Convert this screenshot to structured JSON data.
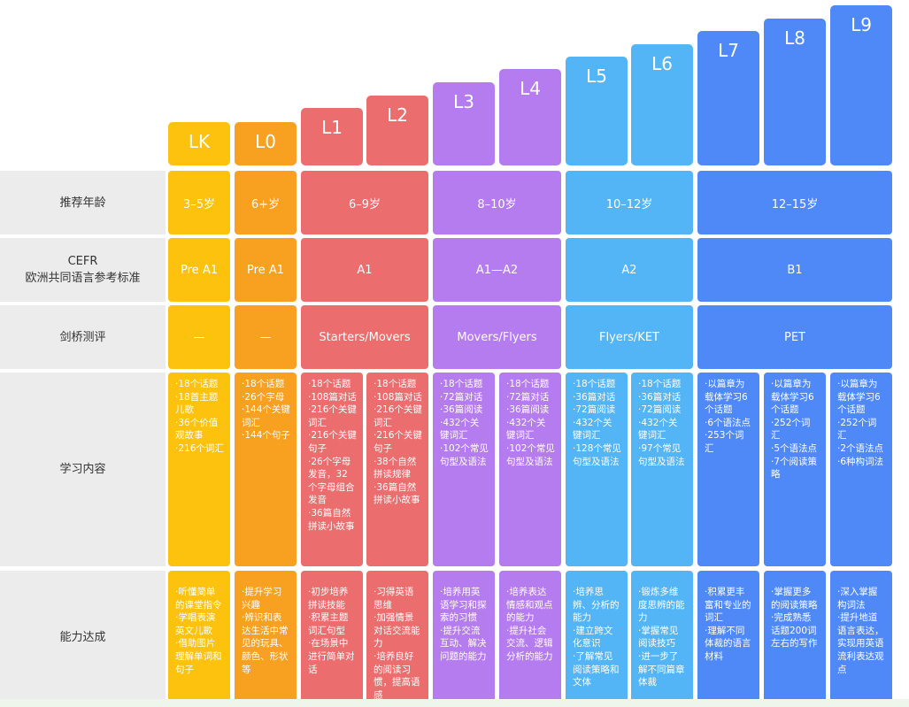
{
  "levels": [
    "LK",
    "L0",
    "L1",
    "L2",
    "L3",
    "L4",
    "L5",
    "L6",
    "L7",
    "L8",
    "L9"
  ],
  "row_labels": {
    "age": "推荐年龄",
    "cefr": "CEFR\n欧洲共同语言参考标准",
    "cambridge": "剑桥测评",
    "content": "学习内容",
    "ability": "能力达成"
  },
  "age": [
    "3–5岁",
    "6+岁",
    "6–9岁",
    "8–10岁",
    "10–12岁",
    "12–15岁"
  ],
  "cefr": [
    "Pre A1",
    "Pre A1",
    "A1",
    "A1—A2",
    "A2",
    "B1"
  ],
  "cambridge": [
    "—",
    "—",
    "Starters/Movers",
    "Movers/Flyers",
    "Flyers/KET",
    "PET"
  ],
  "content": [
    "·18个话题\n·18首主题\n儿歌\n·36个价值\n观故事\n·216个词汇",
    "·18个话题\n·26个字母\n·144个关键\n词汇\n·144个句子",
    "·18个话题\n·108篇对话\n·216个关键\n词汇\n·216个关键\n句子\n·26个字母\n发音，32\n个字母组合\n发音\n·36篇自然\n拼读小故事",
    "·18个话题\n·108篇对话\n·216个关键\n词汇\n·216个关键\n句子\n·38个自然\n拼读规律\n·36篇自然\n拼读小故事",
    "·18个话题\n·72篇对话\n·36篇阅读\n·432个关\n键词汇\n·102个常见\n句型及语法",
    "·18个话题\n·72篇对话\n·36篇阅读\n·432个关\n键词汇\n·102个常见\n句型及语法",
    "·18个话题\n·36篇对话\n·72篇阅读\n·432个关\n键词汇\n·128个常见\n句型及语法",
    "·18个话题\n·36篇对话\n·72篇阅读\n·432个关\n键词汇\n·97个常见\n句型及语法",
    "·以篇章为\n载体学习6\n个话题\n·6个语法点\n·253个词\n汇",
    "·以篇章为\n载体学习6\n个话题\n·252个词\n汇\n·5个语法点\n·7个阅读策\n略",
    "·以篇章为\n载体学习6\n个话题\n·252个词\n汇\n·2个语法点\n·6种构词法"
  ],
  "ability": [
    "·听懂简单\n的课堂指令\n·学唱表演\n英文儿歌\n·借助图片\n理解单词和\n句子",
    "·提升学习\n兴趣\n·辨识和表\n达生活中常\n见的玩具、\n颜色、形状\n等",
    "·初步培养\n拼读技能\n·积累主题\n词汇句型\n·在场景中\n进行简单对\n话",
    "·习得英语\n思维\n·加强情景\n对话交流能\n力\n·培养良好\n的阅读习\n惯，提高语\n感",
    "·培养用英\n语学习和探\n索的习惯\n·提升交流\n互动、解决\n问题的能力",
    "·培养表达\n情感和观点\n的能力\n·提升社会\n交流、逻辑\n分析的能力",
    "·培养思\n辨、分析的\n能力\n·建立跨文\n化意识\n·了解常见\n阅读策略和\n文体",
    "·锻炼多维\n度思辨的能\n力\n·掌握常见\n阅读技巧\n·进一步了\n解不同篇章\n体裁",
    "·积累更丰\n富和专业的\n词汇\n·理解不同\n体裁的语言\n材料",
    "·掌握更多\n的阅读策略\n·完成熟悉\n话题200词\n左右的写作",
    "·深入掌握\n构词法\n·提升地道\n语言表达，\n实现用英语\n流利表达观\n点"
  ],
  "colors": {
    "lk": "#fcc20e",
    "l0": "#f8a01f",
    "red": "#ec6d6d",
    "purple": "#b57cef",
    "sky": "#53b5f6",
    "blue": "#4f89f8",
    "label_bg": "#ececec"
  }
}
